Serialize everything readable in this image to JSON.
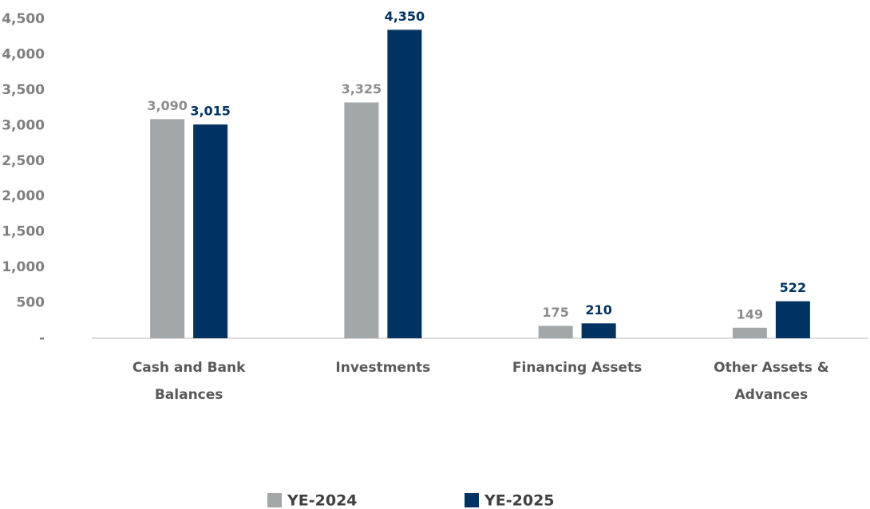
{
  "chart_data": {
    "type": "bar",
    "categories": [
      "Cash and Bank Balances",
      "Investments",
      "Financing Assets",
      "Other Assets & Advances"
    ],
    "series": [
      {
        "name": "YE-2024",
        "color": "#a2a7aa",
        "values": [
          3090,
          3325,
          175,
          149
        ],
        "value_labels": [
          "3,090",
          "3,325",
          "175",
          "149"
        ]
      },
      {
        "name": "YE-2025",
        "color": "#003361",
        "values": [
          3015,
          4350,
          210,
          522
        ],
        "value_labels": [
          "3,015",
          "4,350",
          "210",
          "522"
        ]
      }
    ],
    "ylim": [
      0,
      4500
    ],
    "yticks": [
      {
        "value": 0,
        "label": "-"
      },
      500,
      {
        "value": 1000,
        "label": "1,000"
      },
      {
        "value": 1500,
        "label": "1,500"
      },
      {
        "value": 2000,
        "label": "2,000"
      },
      {
        "value": 2500,
        "label": "2,500"
      },
      {
        "value": 3000,
        "label": "3,000"
      },
      {
        "value": 3500,
        "label": "3,500"
      },
      {
        "value": 4000,
        "label": "4,000"
      },
      {
        "value": 4500,
        "label": "4,500"
      }
    ],
    "grid": false,
    "legend": "bottom"
  }
}
